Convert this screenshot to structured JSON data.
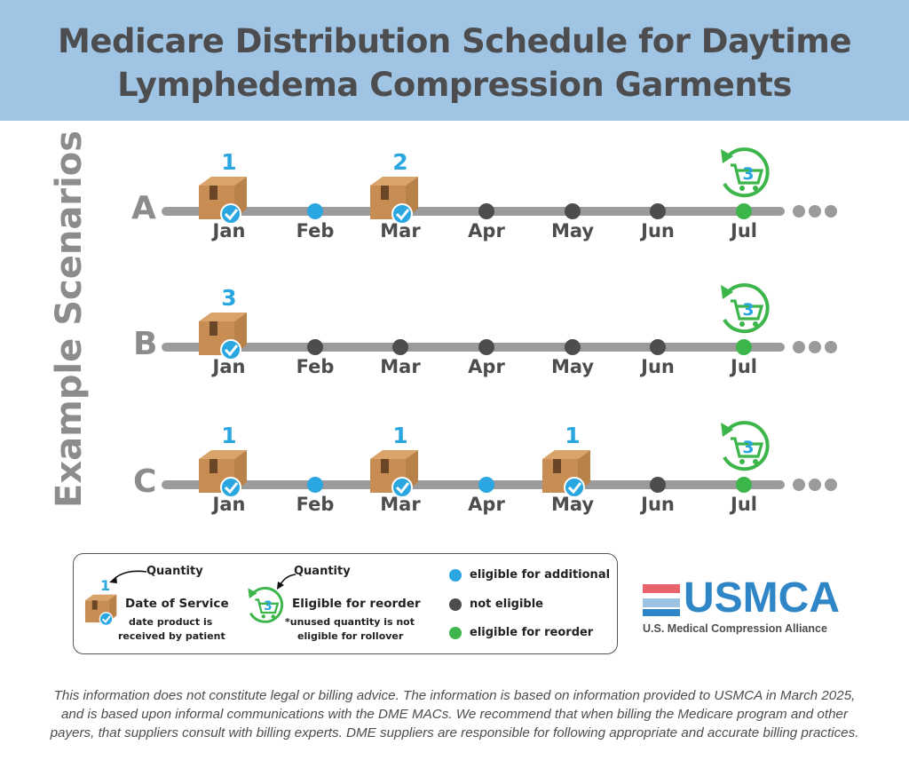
{
  "title": {
    "line1": "Medicare Distribution Schedule for Daytime",
    "line2": "Lymphedema Compression Garments"
  },
  "side_label": "Example Scenarios",
  "months": [
    "Jan",
    "Feb",
    "Mar",
    "Apr",
    "May",
    "Jun",
    "Jul"
  ],
  "rows": [
    {
      "letter": "A",
      "deliveries": [
        {
          "month_index": 0,
          "quantity": "1"
        },
        {
          "month_index": 2,
          "quantity": "2"
        }
      ],
      "dots": [
        "delivery",
        "blue",
        "delivery",
        "dark",
        "dark",
        "dark",
        "green"
      ],
      "reorder_quantity": "3"
    },
    {
      "letter": "B",
      "deliveries": [
        {
          "month_index": 0,
          "quantity": "3"
        }
      ],
      "dots": [
        "delivery",
        "dark",
        "dark",
        "dark",
        "dark",
        "dark",
        "green"
      ],
      "reorder_quantity": "3"
    },
    {
      "letter": "C",
      "deliveries": [
        {
          "month_index": 0,
          "quantity": "1"
        },
        {
          "month_index": 2,
          "quantity": "1"
        },
        {
          "month_index": 4,
          "quantity": "1"
        }
      ],
      "dots": [
        "delivery",
        "blue",
        "delivery",
        "blue",
        "delivery",
        "dark",
        "green"
      ],
      "reorder_quantity": "3"
    }
  ],
  "legend": {
    "quantity_label": "Quantity",
    "box_quantity": "1",
    "date_of_service": "Date of Service",
    "date_of_service_note_1": "date product is",
    "date_of_service_note_2": "received by patient",
    "reorder_quantity_label": "Quantity",
    "reorder_quantity": "3",
    "eligible_for_reorder": "Eligible for reorder",
    "rollover_note_1": "*unused quantity is not",
    "rollover_note_2": "eligible for rollover",
    "eligible_additional": "eligible for additional",
    "not_eligible": "not eligible",
    "eligible_reorder": "eligible for reorder"
  },
  "logo": {
    "name": "USMCA",
    "subtitle": "U.S. Medical Compression Alliance",
    "colors": [
      "#e8636b",
      "#ffffff",
      "#9cc3e4",
      "#2f86c6"
    ]
  },
  "footer": {
    "line1": "This information does not constitute legal or billing advice. The information is based on information provided to USMCA in March 2025,",
    "line2": "and is based upon informal communications with the DME MACs. We recommend that when billing the Medicare program and other",
    "line3": "payers, that suppliers consult with billing experts. DME suppliers are responsible for following appropriate and accurate billing practices."
  },
  "colors": {
    "header_bg": "#a0c4e3",
    "eligible_additional": "#2aa7e0",
    "not_eligible": "#4d4d4f",
    "eligible_reorder": "#3cb54a",
    "track": "#9b9b9b"
  }
}
